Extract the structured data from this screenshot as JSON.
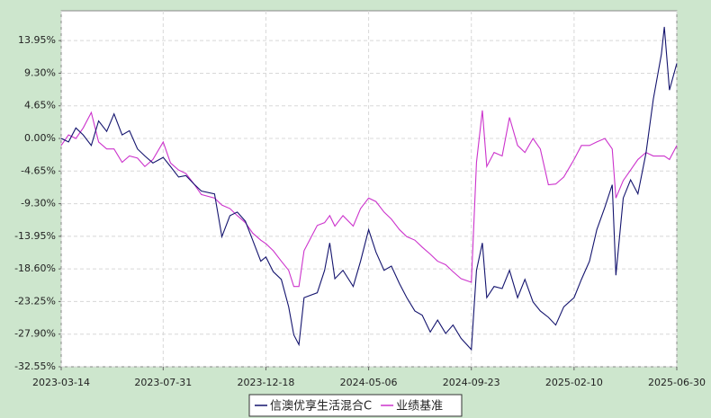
{
  "chart_data": {
    "type": "line",
    "x": [
      "2023-03-14",
      "2023-03-24",
      "2023-04-03",
      "2023-04-13",
      "2023-04-24",
      "2023-05-04",
      "2023-05-15",
      "2023-05-25",
      "2023-06-05",
      "2023-06-15",
      "2023-06-26",
      "2023-07-06",
      "2023-07-17",
      "2023-07-31",
      "2023-08-10",
      "2023-08-21",
      "2023-08-31",
      "2023-09-11",
      "2023-09-21",
      "2023-10-09",
      "2023-10-19",
      "2023-10-30",
      "2023-11-09",
      "2023-11-20",
      "2023-11-30",
      "2023-12-11",
      "2023-12-18",
      "2023-12-28",
      "2024-01-08",
      "2024-01-18",
      "2024-01-25",
      "2024-02-01",
      "2024-02-08",
      "2024-02-26",
      "2024-03-07",
      "2024-03-14",
      "2024-03-21",
      "2024-04-01",
      "2024-04-15",
      "2024-04-25",
      "2024-05-06",
      "2024-05-16",
      "2024-05-27",
      "2024-06-06",
      "2024-06-17",
      "2024-06-27",
      "2024-07-08",
      "2024-07-18",
      "2024-07-29",
      "2024-08-08",
      "2024-08-19",
      "2024-08-29",
      "2024-09-09",
      "2024-09-23",
      "2024-09-30",
      "2024-10-08",
      "2024-10-14",
      "2024-10-24",
      "2024-11-04",
      "2024-11-14",
      "2024-11-25",
      "2024-12-05",
      "2024-12-16",
      "2024-12-26",
      "2025-01-06",
      "2025-01-16",
      "2025-01-27",
      "2025-02-10",
      "2025-02-20",
      "2025-03-03",
      "2025-03-13",
      "2025-03-24",
      "2025-04-03",
      "2025-04-08",
      "2025-04-18",
      "2025-04-28",
      "2025-05-08",
      "2025-05-19",
      "2025-05-29",
      "2025-06-09",
      "2025-06-13",
      "2025-06-20",
      "2025-06-30"
    ],
    "series": [
      {
        "name": "信澳优享生活混合C",
        "color": "#14146e",
        "values": [
          0,
          -0.5,
          1.5,
          0.5,
          -1,
          2.5,
          1,
          3.5,
          0.5,
          1.1,
          -1.5,
          -2.5,
          -3.5,
          -2.7,
          -4,
          -5.5,
          -5.3,
          -6.5,
          -7.5,
          -7.9,
          -14,
          -11,
          -10.5,
          -11.8,
          -14.5,
          -17.5,
          -16.9,
          -19,
          -20.1,
          -24,
          -28,
          -29.4,
          -22.7,
          -22,
          -18.8,
          -14.9,
          -20,
          -18.8,
          -21.1,
          -17.5,
          -13,
          -16.2,
          -18.8,
          -18.2,
          -20.7,
          -22.7,
          -24.6,
          -25.2,
          -27.6,
          -25.9,
          -27.8,
          -26.6,
          -28.5,
          -30.1,
          -18.8,
          -14.9,
          -22.7,
          -21.1,
          -21.4,
          -18.8,
          -22.7,
          -20.1,
          -23.3,
          -24.6,
          -25.5,
          -26.6,
          -24,
          -22.7,
          -20.1,
          -17.5,
          -13,
          -9.8,
          -6.6,
          -19.5,
          -8.5,
          -5.9,
          -7.9,
          -2.1,
          5.6,
          12,
          15.9,
          6.9,
          10.7
        ]
      },
      {
        "name": "业绩基准",
        "color": "#cc33cc",
        "values": [
          -1,
          0.5,
          0,
          1.5,
          3.7,
          -0.5,
          -1.5,
          -1.5,
          -3.4,
          -2.5,
          -2.8,
          -4,
          -3,
          -0.5,
          -3.5,
          -4.5,
          -5,
          -6.5,
          -8,
          -8.5,
          -9.5,
          -10,
          -11,
          -12,
          -13.5,
          -14.5,
          -15,
          -16,
          -17.5,
          -18.8,
          -21.1,
          -21.1,
          -16,
          -12.4,
          -12,
          -11,
          -12.5,
          -11,
          -12.5,
          -10,
          -8.5,
          -9,
          -10.5,
          -11.5,
          -13,
          -14,
          -14.5,
          -15.5,
          -16.5,
          -17.5,
          -18,
          -19,
          -20,
          -20.5,
          -3.4,
          4,
          -4,
          -2,
          -2.5,
          3,
          -1,
          -2,
          0,
          -1.5,
          -6.6,
          -6.5,
          -5.5,
          -3,
          -1,
          -1,
          -0.5,
          0,
          -1.5,
          -8.5,
          -6,
          -4.5,
          -3,
          -2,
          -2.5,
          -2.5,
          -2.5,
          -3,
          -1
        ]
      }
    ],
    "xlim": [
      "2023-03-14",
      "2025-06-30"
    ],
    "xticks": [
      "2023-03-14",
      "2023-07-31",
      "2023-12-18",
      "2024-05-06",
      "2024-09-23",
      "2025-02-10",
      "2025-06-30"
    ],
    "ylim": [
      -32.55,
      18.2
    ],
    "yticks": [
      {
        "value": 13.95,
        "label": "13.95%"
      },
      {
        "value": 9.3,
        "label": "9.30%"
      },
      {
        "value": 4.65,
        "label": "4.65%"
      },
      {
        "value": 0,
        "label": "0.00%"
      },
      {
        "value": -4.65,
        "label": "-4.65%"
      },
      {
        "value": -9.3,
        "label": "-9.30%"
      },
      {
        "value": -13.95,
        "label": "-13.95%"
      },
      {
        "value": -18.6,
        "label": "-18.60%"
      },
      {
        "value": -23.25,
        "label": "-23.25%"
      },
      {
        "value": -27.9,
        "label": "-27.90%"
      },
      {
        "value": -32.55,
        "label": "-32.55%"
      }
    ],
    "grid": true
  }
}
